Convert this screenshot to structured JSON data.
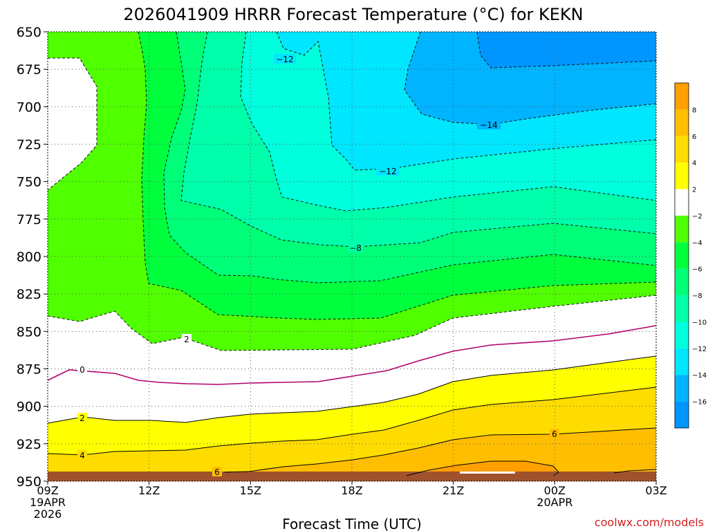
{
  "chart_data": {
    "type": "heatmap",
    "title": "2026041909 HRRR Forecast Temperature (°C) for KEKN",
    "xlabel": "Forecast Time (UTC)",
    "ylabel": "",
    "credit": "coolwx.com/models",
    "x_range_hours": [
      0,
      18
    ],
    "y_range_hpa": [
      650,
      950
    ],
    "y_ticks": [
      650,
      675,
      700,
      725,
      750,
      775,
      800,
      825,
      850,
      875,
      900,
      925,
      950
    ],
    "x_ticks": [
      {
        "hour": 0,
        "lines": [
          "09Z",
          "19APR",
          "2026"
        ]
      },
      {
        "hour": 3,
        "lines": [
          "12Z"
        ]
      },
      {
        "hour": 6,
        "lines": [
          "15Z"
        ]
      },
      {
        "hour": 9,
        "lines": [
          "18Z"
        ]
      },
      {
        "hour": 12,
        "lines": [
          "21Z"
        ]
      },
      {
        "hour": 15,
        "lines": [
          "00Z",
          "20APR"
        ]
      },
      {
        "hour": 18,
        "lines": [
          "03Z"
        ]
      }
    ],
    "colorbar": {
      "labels": [
        "8",
        "6",
        "4",
        "2",
        "−2",
        "−4",
        "−6",
        "−8",
        "−10",
        "−12",
        "−14",
        "−16"
      ],
      "bands": [
        {
          "lo": 8,
          "hi": 10,
          "color": "#ffa000"
        },
        {
          "lo": 6,
          "hi": 8,
          "color": "#ffbe00"
        },
        {
          "lo": 4,
          "hi": 6,
          "color": "#ffdc00"
        },
        {
          "lo": 2,
          "hi": 4,
          "color": "#ffff00"
        },
        {
          "lo": -2,
          "hi": 2,
          "color": "#ffffff"
        },
        {
          "lo": -4,
          "hi": -2,
          "color": "#50ff00"
        },
        {
          "lo": -6,
          "hi": -4,
          "color": "#00ff3c"
        },
        {
          "lo": -8,
          "hi": -6,
          "color": "#00ff78"
        },
        {
          "lo": -10,
          "hi": -8,
          "color": "#00ffaa"
        },
        {
          "lo": -12,
          "hi": -10,
          "color": "#00ffdc"
        },
        {
          "lo": -14,
          "hi": -12,
          "color": "#00e6ff"
        },
        {
          "lo": -16,
          "hi": -14,
          "color": "#00b4ff"
        },
        {
          "lo": -18,
          "hi": -16,
          "color": "#0096ff"
        }
      ]
    },
    "contour_labels": [
      "−12",
      "−14",
      "−12",
      "−8",
      "2",
      "0",
      "2",
      "4",
      "6",
      "6"
    ],
    "ground_color": "#a0522d"
  }
}
